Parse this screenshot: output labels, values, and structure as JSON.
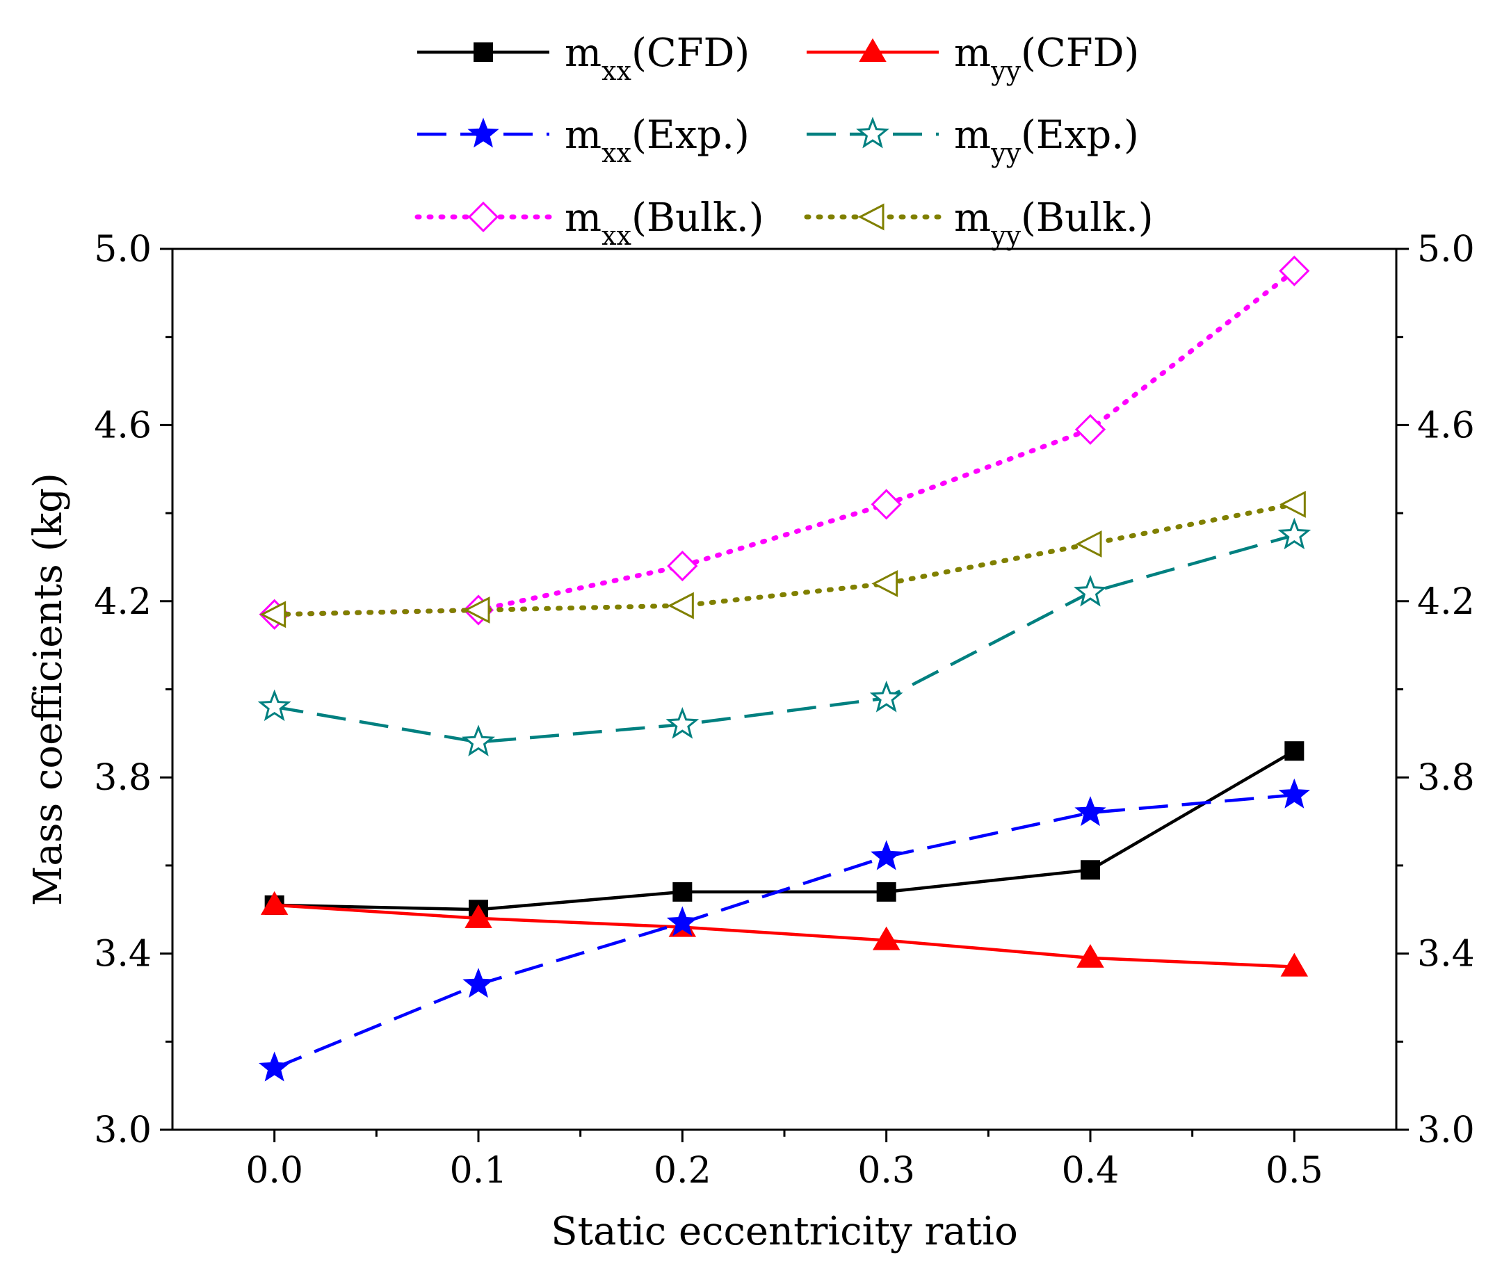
{
  "chart_data": {
    "type": "line",
    "title": "",
    "xlabel": "Static eccentricity ratio",
    "ylabel": "Mass coefficients (kg)",
    "xlim": [
      -0.05,
      0.55
    ],
    "ylim": [
      3.0,
      5.0
    ],
    "x": [
      0.0,
      0.1,
      0.2,
      0.3,
      0.4,
      0.5
    ],
    "x_tick_labels": [
      "0.0",
      "0.1",
      "0.2",
      "0.3",
      "0.4",
      "0.5"
    ],
    "y_tick_labels": [
      "3.0",
      "3.4",
      "3.8",
      "4.2",
      "4.6",
      "5.0"
    ],
    "y_ticks": [
      3.0,
      3.4,
      3.8,
      4.2,
      4.6,
      5.0
    ],
    "right_axis": true,
    "grid": false,
    "legend_position": "top",
    "series": [
      {
        "name": "mxx(CFD)",
        "base": "m",
        "sub": "xx",
        "suffix": "(CFD)",
        "color": "#000000",
        "line": "solid",
        "marker": "square-filled",
        "values": [
          3.51,
          3.5,
          3.54,
          3.54,
          3.59,
          3.86
        ]
      },
      {
        "name": "myy(CFD)",
        "base": "m",
        "sub": "yy",
        "suffix": "(CFD)",
        "color": "#ff0000",
        "line": "solid",
        "marker": "triangle-up-filled",
        "values": [
          3.51,
          3.48,
          3.46,
          3.43,
          3.39,
          3.37
        ]
      },
      {
        "name": "mxx(Exp.)",
        "base": "m",
        "sub": "xx",
        "suffix": "(Exp.)",
        "color": "#0000ff",
        "line": "dash",
        "marker": "star-filled",
        "values": [
          3.14,
          3.33,
          3.47,
          3.62,
          3.72,
          3.76
        ]
      },
      {
        "name": "myy(Exp.)",
        "base": "m",
        "sub": "yy",
        "suffix": "(Exp.)",
        "color": "#008080",
        "line": "dash",
        "marker": "star-open",
        "values": [
          3.96,
          3.88,
          3.92,
          3.98,
          4.22,
          4.35
        ]
      },
      {
        "name": "mxx(Bulk.)",
        "base": "m",
        "sub": "xx",
        "suffix": "(Bulk.)",
        "color": "#ff00ff",
        "line": "dot",
        "marker": "diamond-open",
        "values": [
          4.17,
          4.18,
          4.28,
          4.42,
          4.59,
          4.95
        ]
      },
      {
        "name": "myy(Bulk.)",
        "base": "m",
        "sub": "yy",
        "suffix": "(Bulk.)",
        "color": "#808000",
        "line": "dot",
        "marker": "triangle-left-open",
        "values": [
          4.17,
          4.18,
          4.19,
          4.24,
          4.33,
          4.42
        ]
      }
    ]
  }
}
